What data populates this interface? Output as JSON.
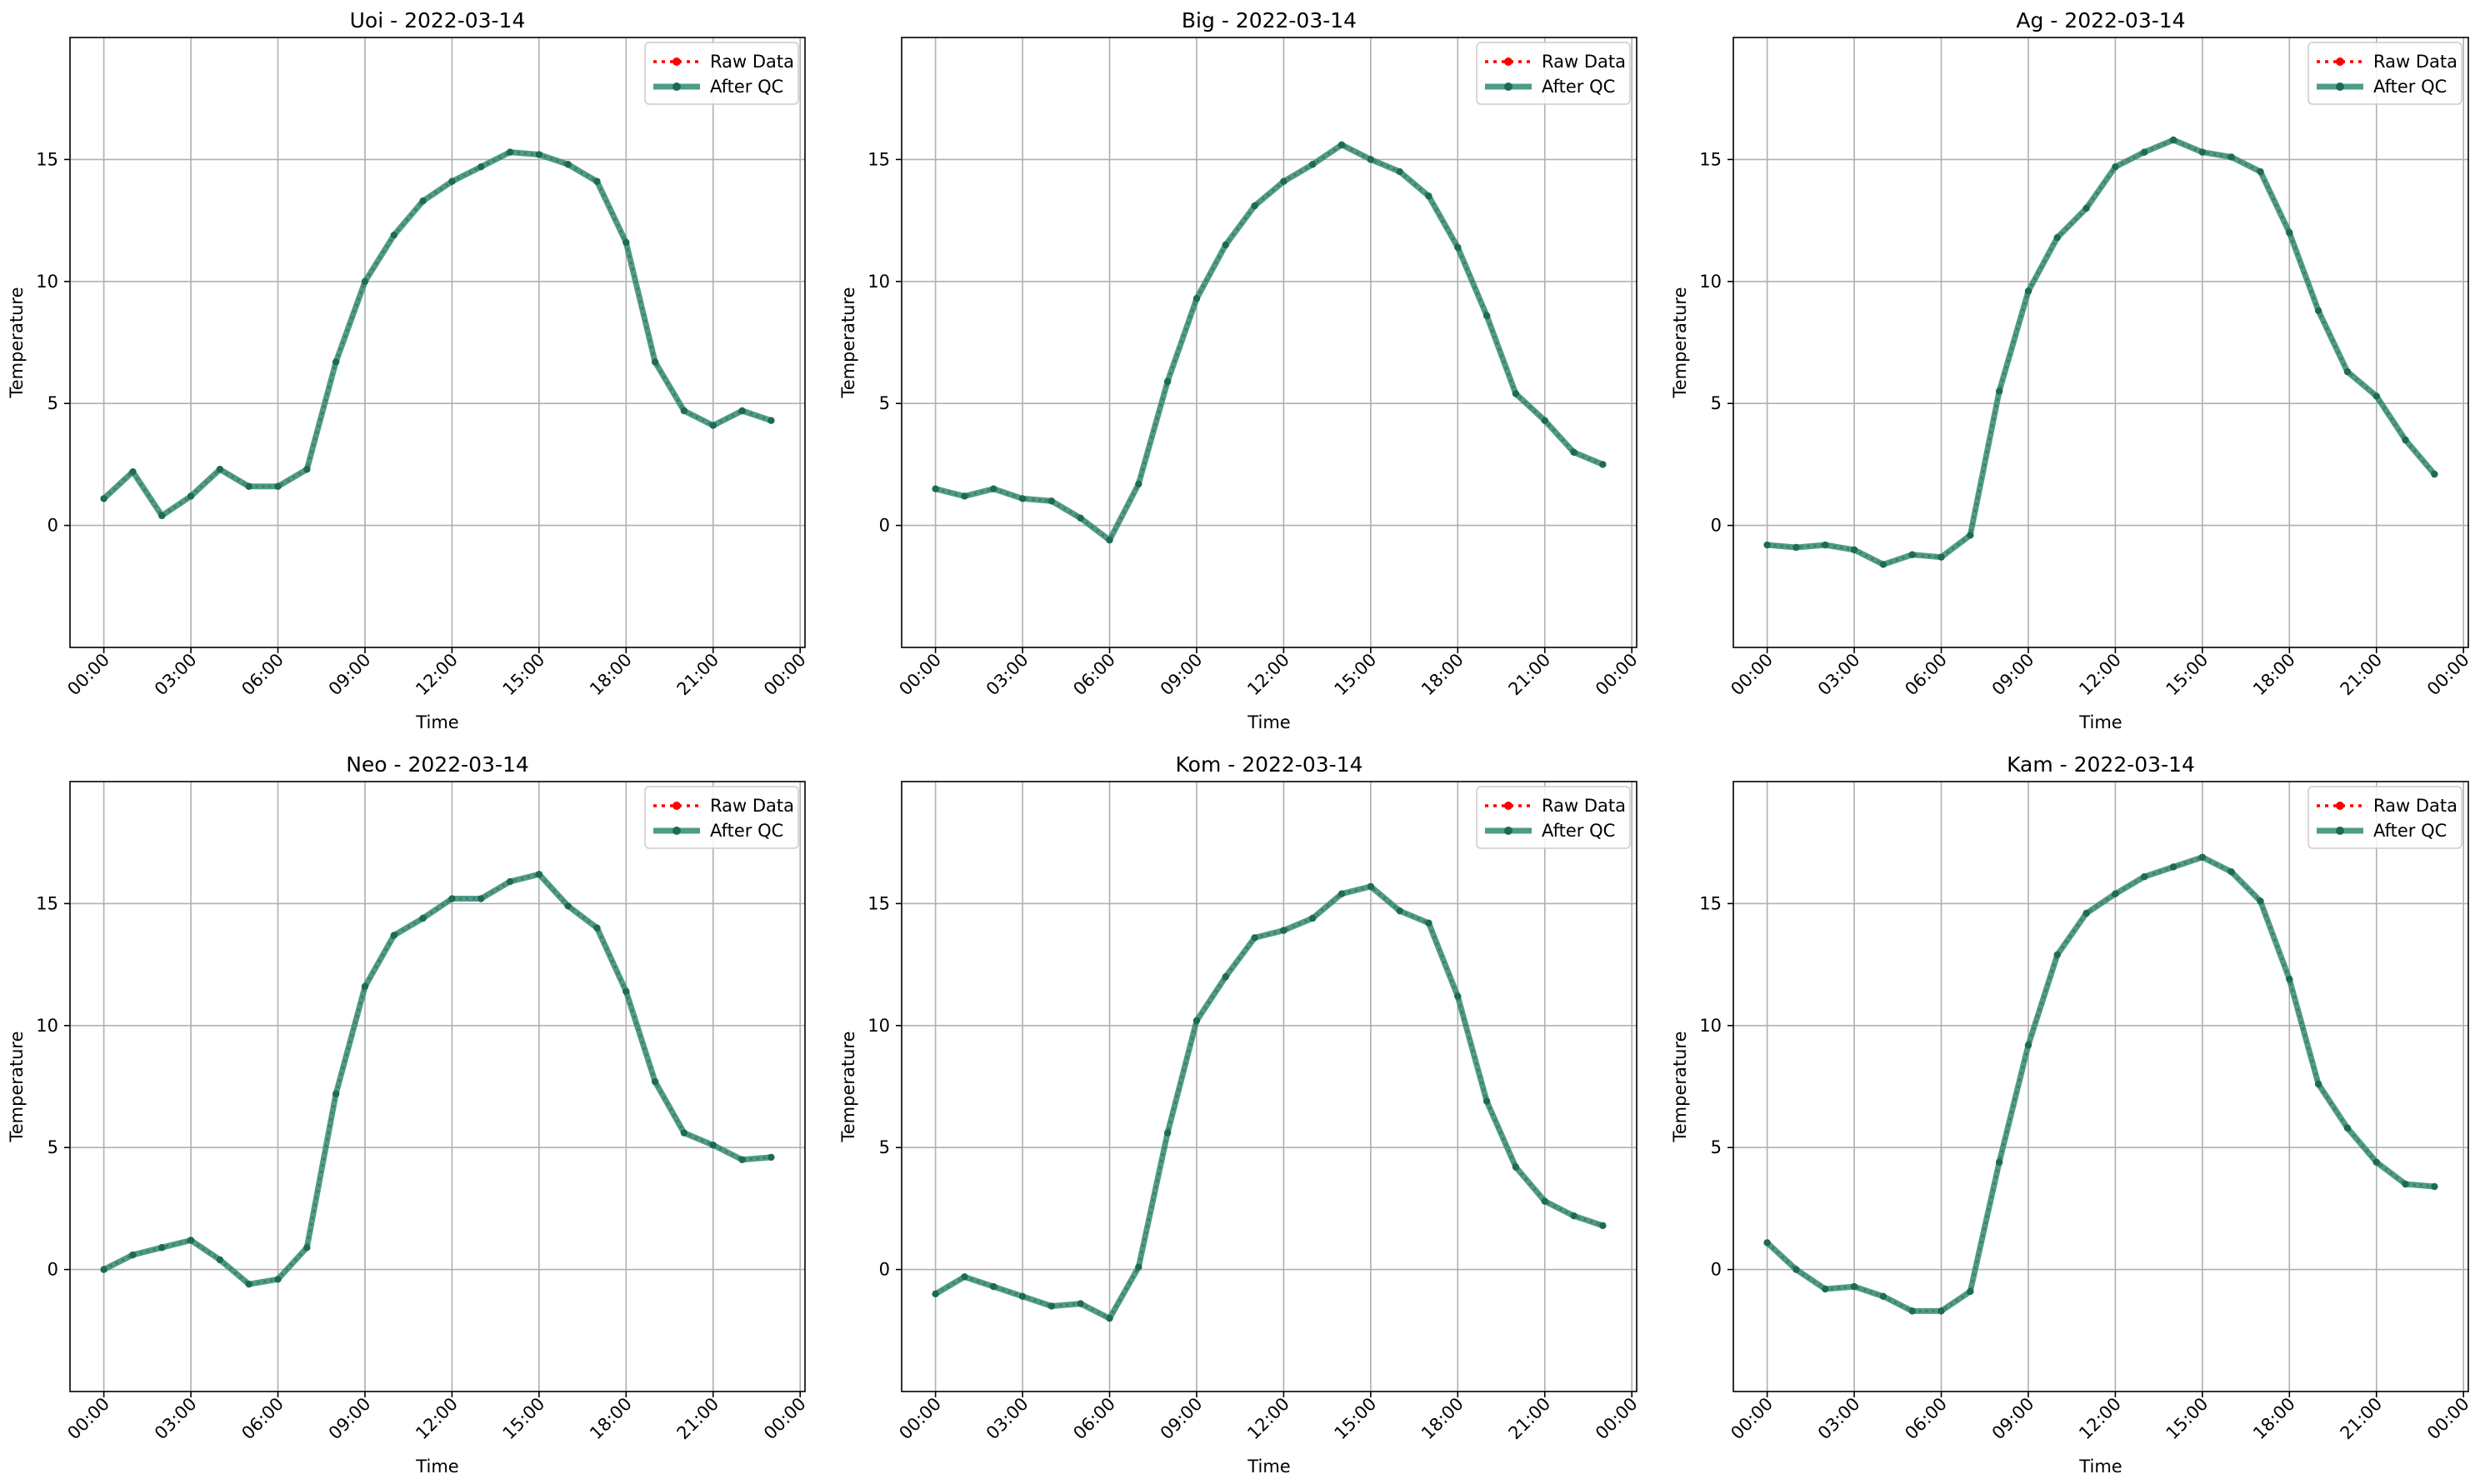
{
  "legend_labels": {
    "raw": "Raw Data",
    "qc": "After QC"
  },
  "x_tick_labels": [
    "00:00",
    "03:00",
    "06:00",
    "09:00",
    "12:00",
    "15:00",
    "18:00",
    "21:00",
    "00:00"
  ],
  "colors": {
    "raw": "#ff0000",
    "qc": "#2e8b73",
    "grid": "#b0b0b0",
    "axis": "#000000"
  },
  "chart_data": [
    {
      "type": "line",
      "title": "Uoi - 2022-03-14",
      "xlabel": "Time",
      "ylabel": "Temperature",
      "x": [
        "00:00",
        "01:00",
        "02:00",
        "03:00",
        "04:00",
        "05:00",
        "06:00",
        "07:00",
        "08:00",
        "09:00",
        "10:00",
        "11:00",
        "12:00",
        "13:00",
        "14:00",
        "15:00",
        "16:00",
        "17:00",
        "18:00",
        "19:00",
        "20:00",
        "21:00",
        "22:00",
        "23:00"
      ],
      "xlim": [
        "2022-03-13 22:50",
        "2022-03-15 00:10"
      ],
      "ylim": [
        -5,
        20
      ],
      "yticks": [
        0,
        5,
        10,
        15
      ],
      "grid": true,
      "legend_position": "top-right",
      "series": [
        {
          "name": "Raw Data",
          "values": [
            1.1,
            2.2,
            0.4,
            1.2,
            2.3,
            1.6,
            1.6,
            2.3,
            6.7,
            10.0,
            11.9,
            13.3,
            14.1,
            14.7,
            15.3,
            15.2,
            14.8,
            14.1,
            11.6,
            6.7,
            4.7,
            4.1,
            4.7,
            4.3
          ]
        },
        {
          "name": "After QC",
          "values": [
            1.1,
            2.2,
            0.4,
            1.2,
            2.3,
            1.6,
            1.6,
            2.3,
            6.7,
            10.0,
            11.9,
            13.3,
            14.1,
            14.7,
            15.3,
            15.2,
            14.8,
            14.1,
            11.6,
            6.7,
            4.7,
            4.1,
            4.7,
            4.3
          ]
        }
      ]
    },
    {
      "type": "line",
      "title": "Big - 2022-03-14",
      "xlabel": "Time",
      "ylabel": "Temperature",
      "x": [
        "00:00",
        "01:00",
        "02:00",
        "03:00",
        "04:00",
        "05:00",
        "06:00",
        "07:00",
        "08:00",
        "09:00",
        "10:00",
        "11:00",
        "12:00",
        "13:00",
        "14:00",
        "15:00",
        "16:00",
        "17:00",
        "18:00",
        "19:00",
        "20:00",
        "21:00",
        "22:00",
        "23:00"
      ],
      "xlim": [
        "2022-03-13 22:50",
        "2022-03-15 00:10"
      ],
      "ylim": [
        -5,
        20
      ],
      "yticks": [
        0,
        5,
        10,
        15
      ],
      "grid": true,
      "legend_position": "top-right",
      "series": [
        {
          "name": "Raw Data",
          "values": [
            1.5,
            1.2,
            1.5,
            1.1,
            1.0,
            0.3,
            -0.6,
            1.7,
            5.9,
            9.3,
            11.5,
            13.1,
            14.1,
            14.8,
            15.6,
            15.0,
            14.5,
            13.5,
            11.4,
            8.6,
            5.4,
            4.3,
            3.0,
            2.5
          ]
        },
        {
          "name": "After QC",
          "values": [
            1.5,
            1.2,
            1.5,
            1.1,
            1.0,
            0.3,
            -0.6,
            1.7,
            5.9,
            9.3,
            11.5,
            13.1,
            14.1,
            14.8,
            15.6,
            15.0,
            14.5,
            13.5,
            11.4,
            8.6,
            5.4,
            4.3,
            3.0,
            2.5
          ]
        }
      ]
    },
    {
      "type": "line",
      "title": "Ag - 2022-03-14",
      "xlabel": "Time",
      "ylabel": "Temperature",
      "x": [
        "00:00",
        "01:00",
        "02:00",
        "03:00",
        "04:00",
        "05:00",
        "06:00",
        "07:00",
        "08:00",
        "09:00",
        "10:00",
        "11:00",
        "12:00",
        "13:00",
        "14:00",
        "15:00",
        "16:00",
        "17:00",
        "18:00",
        "19:00",
        "20:00",
        "21:00",
        "22:00",
        "23:00"
      ],
      "xlim": [
        "2022-03-13 22:50",
        "2022-03-15 00:10"
      ],
      "ylim": [
        -5,
        20
      ],
      "yticks": [
        0,
        5,
        10,
        15
      ],
      "grid": true,
      "legend_position": "top-right",
      "series": [
        {
          "name": "Raw Data",
          "values": [
            -0.8,
            -0.9,
            -0.8,
            -1.0,
            -1.6,
            -1.2,
            -1.3,
            -0.4,
            5.5,
            9.6,
            11.8,
            13.0,
            14.7,
            15.3,
            15.8,
            15.3,
            15.1,
            14.5,
            12.0,
            8.8,
            6.3,
            5.3,
            3.5,
            2.1
          ]
        },
        {
          "name": "After QC",
          "values": [
            -0.8,
            -0.9,
            -0.8,
            -1.0,
            -1.6,
            -1.2,
            -1.3,
            -0.4,
            5.5,
            9.6,
            11.8,
            13.0,
            14.7,
            15.3,
            15.8,
            15.3,
            15.1,
            14.5,
            12.0,
            8.8,
            6.3,
            5.3,
            3.5,
            2.1
          ]
        }
      ]
    },
    {
      "type": "line",
      "title": "Neo - 2022-03-14",
      "xlabel": "Time",
      "ylabel": "Temperature",
      "x": [
        "00:00",
        "01:00",
        "02:00",
        "03:00",
        "04:00",
        "05:00",
        "06:00",
        "07:00",
        "08:00",
        "09:00",
        "10:00",
        "11:00",
        "12:00",
        "13:00",
        "14:00",
        "15:00",
        "16:00",
        "17:00",
        "18:00",
        "19:00",
        "20:00",
        "21:00",
        "22:00",
        "23:00"
      ],
      "xlim": [
        "2022-03-13 22:50",
        "2022-03-15 00:10"
      ],
      "ylim": [
        -5,
        20
      ],
      "yticks": [
        0,
        5,
        10,
        15
      ],
      "grid": true,
      "legend_position": "top-right",
      "series": [
        {
          "name": "Raw Data",
          "values": [
            0.0,
            0.6,
            0.9,
            1.2,
            0.4,
            -0.6,
            -0.4,
            0.9,
            7.2,
            11.6,
            13.7,
            14.4,
            15.2,
            15.2,
            15.9,
            16.2,
            14.9,
            14.0,
            11.4,
            7.7,
            5.6,
            5.1,
            4.5,
            4.6
          ]
        },
        {
          "name": "After QC",
          "values": [
            0.0,
            0.6,
            0.9,
            1.2,
            0.4,
            -0.6,
            -0.4,
            0.9,
            7.2,
            11.6,
            13.7,
            14.4,
            15.2,
            15.2,
            15.9,
            16.2,
            14.9,
            14.0,
            11.4,
            7.7,
            5.6,
            5.1,
            4.5,
            4.6
          ]
        }
      ]
    },
    {
      "type": "line",
      "title": "Kom - 2022-03-14",
      "xlabel": "Time",
      "ylabel": "Temperature",
      "x": [
        "00:00",
        "01:00",
        "02:00",
        "03:00",
        "04:00",
        "05:00",
        "06:00",
        "07:00",
        "08:00",
        "09:00",
        "10:00",
        "11:00",
        "12:00",
        "13:00",
        "14:00",
        "15:00",
        "16:00",
        "17:00",
        "18:00",
        "19:00",
        "20:00",
        "21:00",
        "22:00",
        "23:00"
      ],
      "xlim": [
        "2022-03-13 22:50",
        "2022-03-15 00:10"
      ],
      "ylim": [
        -5,
        20
      ],
      "yticks": [
        0,
        5,
        10,
        15
      ],
      "grid": true,
      "legend_position": "top-right",
      "series": [
        {
          "name": "Raw Data",
          "values": [
            -1.0,
            -0.3,
            -0.7,
            -1.1,
            -1.5,
            -1.4,
            -2.0,
            0.1,
            5.6,
            10.2,
            12.0,
            13.6,
            13.9,
            14.4,
            15.4,
            15.7,
            14.7,
            14.2,
            11.2,
            6.9,
            4.2,
            2.8,
            2.2,
            1.8
          ]
        },
        {
          "name": "After QC",
          "values": [
            -1.0,
            -0.3,
            -0.7,
            -1.1,
            -1.5,
            -1.4,
            -2.0,
            0.1,
            5.6,
            10.2,
            12.0,
            13.6,
            13.9,
            14.4,
            15.4,
            15.7,
            14.7,
            14.2,
            11.2,
            6.9,
            4.2,
            2.8,
            2.2,
            1.8
          ]
        }
      ]
    },
    {
      "type": "line",
      "title": "Kam - 2022-03-14",
      "xlabel": "Time",
      "ylabel": "Temperature",
      "x": [
        "00:00",
        "01:00",
        "02:00",
        "03:00",
        "04:00",
        "05:00",
        "06:00",
        "07:00",
        "08:00",
        "09:00",
        "10:00",
        "11:00",
        "12:00",
        "13:00",
        "14:00",
        "15:00",
        "16:00",
        "17:00",
        "18:00",
        "19:00",
        "20:00",
        "21:00",
        "22:00",
        "23:00"
      ],
      "xlim": [
        "2022-03-13 22:50",
        "2022-03-15 00:10"
      ],
      "ylim": [
        -5,
        20
      ],
      "yticks": [
        0,
        5,
        10,
        15
      ],
      "grid": true,
      "legend_position": "top-right",
      "series": [
        {
          "name": "Raw Data",
          "values": [
            1.1,
            0.0,
            -0.8,
            -0.7,
            -1.1,
            -1.7,
            -1.7,
            -0.9,
            4.4,
            9.2,
            12.9,
            14.6,
            15.4,
            16.1,
            16.5,
            16.9,
            16.3,
            15.1,
            11.9,
            7.6,
            5.8,
            4.4,
            3.5,
            3.4
          ]
        },
        {
          "name": "After QC",
          "values": [
            1.1,
            0.0,
            -0.8,
            -0.7,
            -1.1,
            -1.7,
            -1.7,
            -0.9,
            4.4,
            9.2,
            12.9,
            14.6,
            15.4,
            16.1,
            16.5,
            16.9,
            16.3,
            15.1,
            11.9,
            7.6,
            5.8,
            4.4,
            3.5,
            3.4
          ]
        }
      ]
    }
  ]
}
